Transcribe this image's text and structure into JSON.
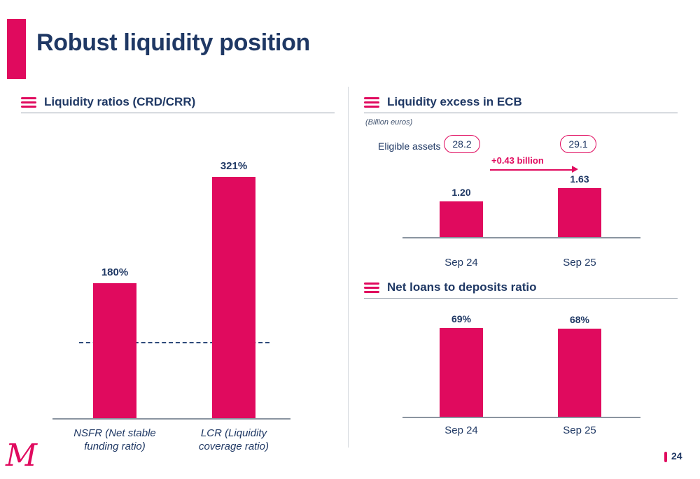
{
  "slide": {
    "title": "Robust liquidity position",
    "page_number": "24",
    "logo_text": "M"
  },
  "colors": {
    "accent": "#E00A5E",
    "navy": "#1F3864"
  },
  "chart_data": [
    {
      "id": "liquidity_ratios",
      "type": "bar",
      "title": "Liquidity ratios (CRD/CRR)",
      "categories": [
        "NSFR (Net stable funding ratio)",
        "LCR (Liquidity coverage ratio)"
      ],
      "values": [
        180,
        321
      ],
      "value_labels": [
        "180%",
        "321%"
      ],
      "unit": "%",
      "ylim": [
        0,
        350
      ],
      "reference_line": 100,
      "reference_line_style": "dashed",
      "grid": false,
      "legend": false
    },
    {
      "id": "liquidity_excess_ecb",
      "type": "bar",
      "title": "Liquidity excess in ECB",
      "subtitle": "(Billion euros)",
      "categories": [
        "Sep 24",
        "Sep 25"
      ],
      "values": [
        1.2,
        1.63
      ],
      "value_labels": [
        "1.20",
        "1.63"
      ],
      "ylim": [
        0,
        2.2
      ],
      "grid": false,
      "legend": false,
      "annotations": {
        "eligible_assets_label": "Eligible assets",
        "eligible_assets_values": [
          "28.2",
          "29.1"
        ],
        "delta_label": "+0.43 billion"
      }
    },
    {
      "id": "net_loans_to_deposits",
      "type": "bar",
      "title": "Net loans to deposits ratio",
      "categories": [
        "Sep 24",
        "Sep 25"
      ],
      "values": [
        69,
        68
      ],
      "value_labels": [
        "69%",
        "68%"
      ],
      "unit": "%",
      "ylim": [
        0,
        80
      ],
      "grid": false,
      "legend": false
    }
  ]
}
